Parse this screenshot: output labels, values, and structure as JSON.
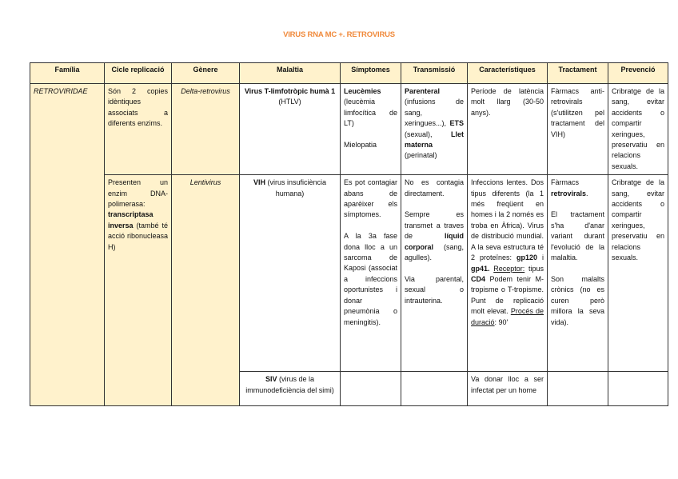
{
  "document": {
    "title": "VIRUS RNA MC +. RETROVIRUS"
  },
  "colors": {
    "title": "#f08a3c",
    "highlight_fill": "#fff2cc"
  },
  "table": {
    "headers": [
      "Família",
      "Cicle replicació",
      "Gènere",
      "Malaltia",
      "Símptomes",
      "Transmissió",
      "Característiques",
      "Tractament",
      "Prevenció"
    ],
    "cells": {
      "familia": [
        [
          {
            "t": "RETROVIRIDAE",
            "i": true
          }
        ]
      ],
      "cicle1": [
        [
          {
            "t": "Són 2 copies idèntiques associats a diferents enzims."
          }
        ]
      ],
      "cicle2": [
        [
          {
            "t": "Presenten un enzim DNA-polimerasa: "
          },
          {
            "t": "transcriptasa inversa",
            "b": true
          },
          {
            "t": " (també té acció ribonucleasa H)"
          }
        ]
      ],
      "genere1": [
        [
          {
            "t": "Delta-retrovirus",
            "i": true
          }
        ]
      ],
      "genere2": [
        [
          {
            "t": "Lentivirus",
            "i": true
          }
        ]
      ],
      "malaltia1": [
        [
          {
            "t": "Virus T-limfotròpic humà 1",
            "b": true
          },
          {
            "t": " (HTLV)"
          }
        ]
      ],
      "simptomes1": [
        [
          {
            "t": "Leucèmies",
            "b": true
          },
          {
            "t": " (leucèmia limfocítica de LT)"
          }
        ],
        [
          {
            "t": "Mielopatia"
          }
        ]
      ],
      "transmissio1": [
        [
          {
            "t": "Parenteral",
            "b": true
          },
          {
            "t": " (infusions de sang, xeringues...), "
          },
          {
            "t": "ETS",
            "b": true
          },
          {
            "t": " (sexual), "
          },
          {
            "t": "Llet materna",
            "b": true
          },
          {
            "t": " (perinatal)"
          }
        ]
      ],
      "caract1": [
        [
          {
            "t": "Període de latència molt llarg (30-50 anys)."
          }
        ]
      ],
      "tractament1": [
        [
          {
            "t": "Fàrmacs anti-retrovirals (s'utilitzen pel tractament del VIH)"
          }
        ]
      ],
      "prevencio1": [
        [
          {
            "t": "Cribratge de la sang, evitar accidents o compartir xeringues, preservatiu en relacions sexuals."
          }
        ]
      ],
      "malaltia2": [
        [
          {
            "t": "VIH",
            "b": true
          },
          {
            "t": " (virus insuficiència humana)"
          }
        ]
      ],
      "simptomes2": [
        [
          {
            "t": "Es pot contagiar abans de aparèixer els símptomes."
          }
        ],
        [
          {
            "t": "A la 3a fase dona lloc a un sarcoma de Kaposi (associat a infeccions oportunistes i donar pneumònia o meningitis)."
          }
        ]
      ],
      "transmissio2": [
        [
          {
            "t": "No es contagia directament."
          }
        ],
        [
          {
            "t": "Sempre es transmet a traves de "
          },
          {
            "t": "líquid corporal",
            "b": true
          },
          {
            "t": " (sang, agulles)."
          }
        ],
        [
          {
            "t": "Via parental, sexual o intrauterina."
          }
        ]
      ],
      "caract2": [
        [
          {
            "t": "Infeccions lentes. Dos tipus diferents (la 1 més freqüent en homes i la 2 només es troba en Àfrica). Virus de distribució mundial. A la seva estructura té 2 proteïnes: "
          },
          {
            "t": "gp120",
            "b": true
          },
          {
            "t": " i "
          },
          {
            "t": "gp41.",
            "b": true
          },
          {
            "t": " "
          },
          {
            "t": "Receptor:",
            "u": true
          },
          {
            "t": " tipus "
          },
          {
            "t": "CD4",
            "b": true
          },
          {
            "t": " Podem tenir M-tropisme o T-tropisme. Punt de replicació molt elevat. "
          },
          {
            "t": "Procés de duració",
            "u": true
          },
          {
            "t": ": 90'"
          }
        ]
      ],
      "tractament2": [
        [
          {
            "t": "Fàrmacs "
          },
          {
            "t": "retrovirals",
            "b": true
          },
          {
            "t": "."
          }
        ],
        [
          {
            "t": "El tractament s'ha d'anar variant durant l'evolució de la malaltia."
          }
        ],
        [
          {
            "t": "Son malalts crònics (no es curen però millora la seva vida)."
          }
        ]
      ],
      "prevencio2": [
        [
          {
            "t": "Cribratge de la sang, evitar accidents o compartir xeringues, preservatiu en relacions sexuals."
          }
        ]
      ],
      "malaltia3": [
        [
          {
            "t": "SIV",
            "b": true
          },
          {
            "t": " (virus de la immunodeficiència del simi)"
          }
        ]
      ],
      "caract3": [
        [
          {
            "t": "Va donar lloc a ser infectat per un home"
          }
        ]
      ]
    }
  }
}
